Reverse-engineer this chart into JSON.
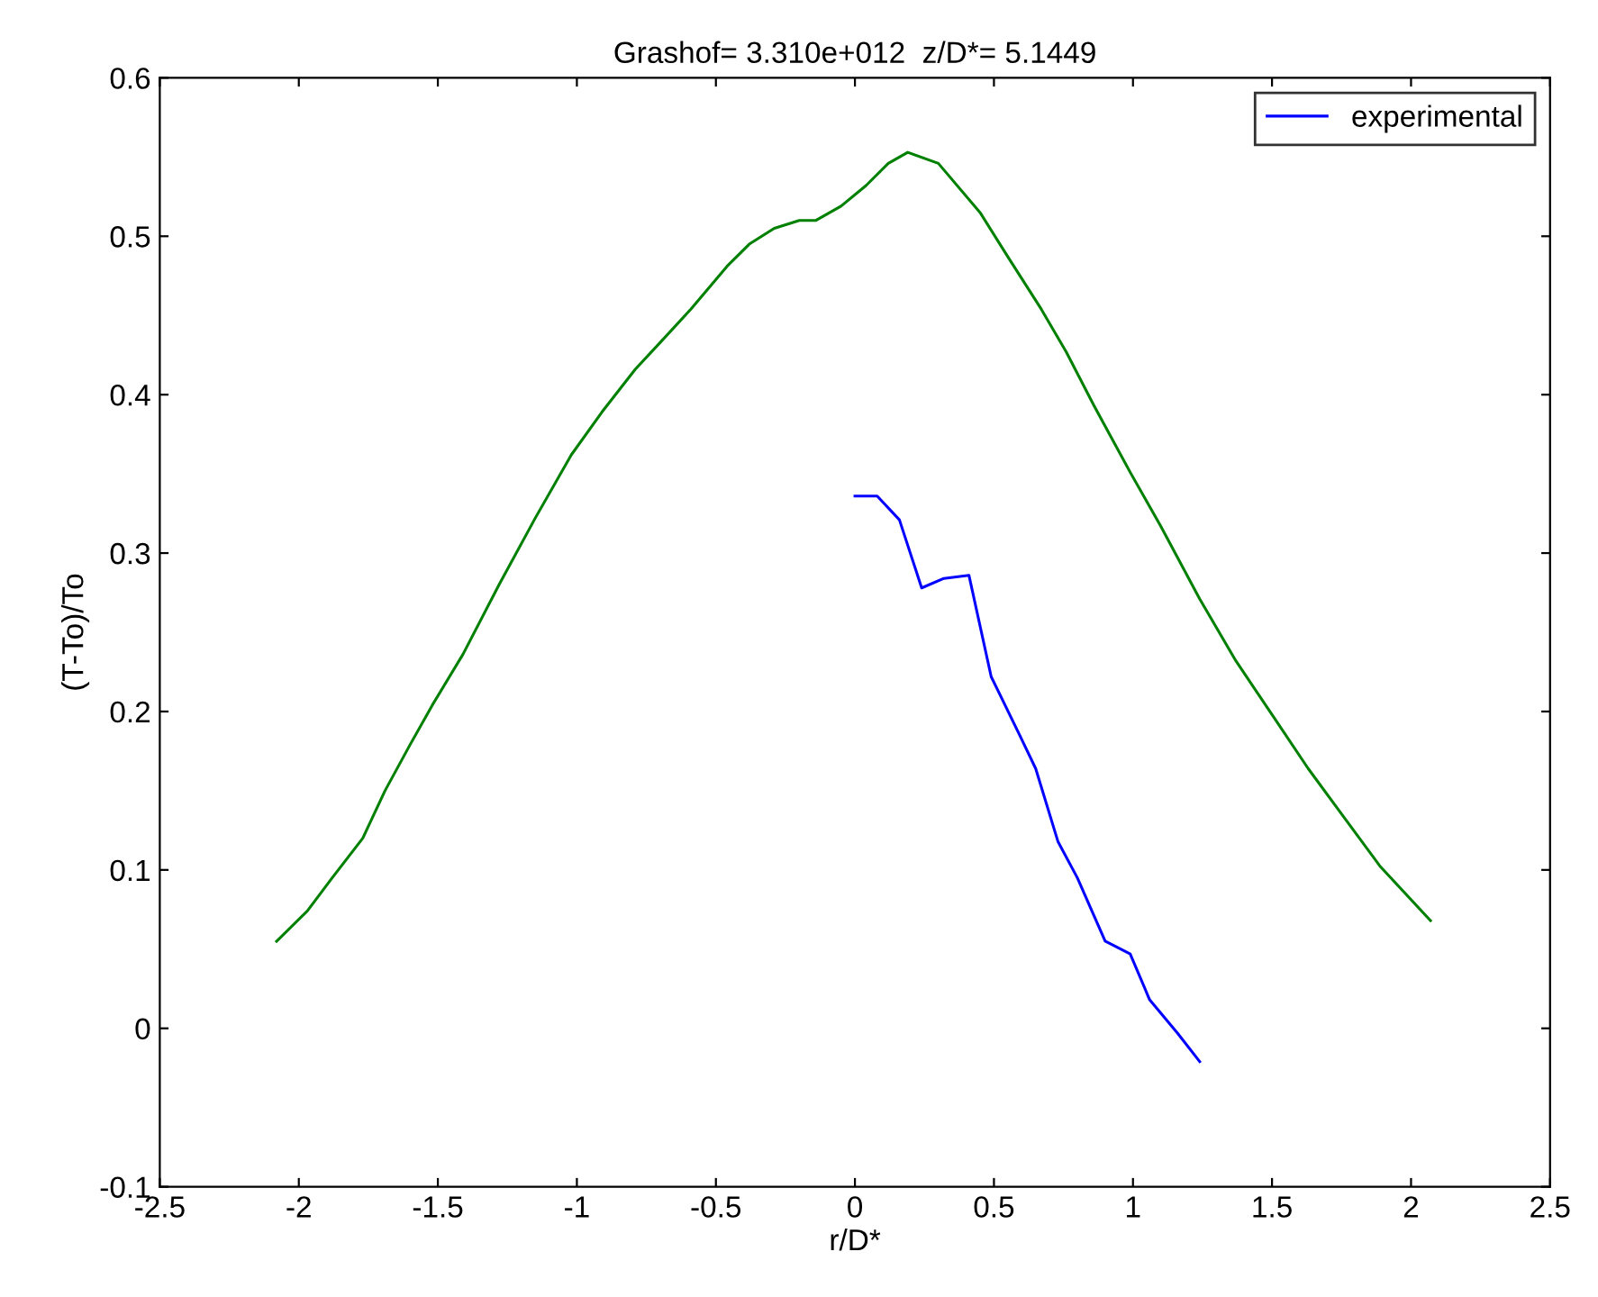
{
  "chart_data": {
    "type": "line",
    "title": "Grashof= 3.310e+012  z/D*= 5.1449",
    "xlabel": "r/D*",
    "ylabel": "(T-To)/To",
    "xlim": [
      -2.5,
      2.5
    ],
    "xticks": [
      -2.5,
      -2,
      -1.5,
      -1,
      -0.5,
      0,
      0.5,
      1,
      1.5,
      2,
      2.5
    ],
    "ylim": [
      -0.1,
      0.6
    ],
    "yticks": [
      -0.1,
      0,
      0.1,
      0.2,
      0.3,
      0.4,
      0.5,
      0.6
    ],
    "grid": false,
    "legend": "top right",
    "marker": "none",
    "line_style": "solid",
    "series": [
      {
        "name": "experimental",
        "color": "#0000ff",
        "x": [
          0,
          0.08,
          0.16,
          0.24,
          0.32,
          0.41,
          0.49,
          0.59,
          0.65,
          0.73,
          0.8,
          0.9,
          0.99,
          1.06,
          1.16,
          1.24
        ],
        "values": [
          0.336,
          0.336,
          0.321,
          0.278,
          0.284,
          0.286,
          0.222,
          0.186,
          0.164,
          0.118,
          0.095,
          0.055,
          0.047,
          0.018,
          -0.003,
          -0.021
        ]
      },
      {
        "color": "#008000",
        "x": [
          -2.08,
          -1.97,
          -1.88,
          -1.77,
          -1.69,
          -1.6,
          -1.52,
          -1.41,
          -1.28,
          -1.15,
          -1.02,
          -0.91,
          -0.79,
          -0.7,
          -0.59,
          -0.46,
          -0.38,
          -0.29,
          -0.2,
          -0.14,
          -0.05,
          0.04,
          0.12,
          0.19,
          0.3,
          0.45,
          0.55,
          0.67,
          0.76,
          0.86,
          0.99,
          1.1,
          1.24,
          1.37,
          1.5,
          1.63,
          1.76,
          1.89,
          2.07
        ],
        "values": [
          0.055,
          0.074,
          0.095,
          0.12,
          0.15,
          0.179,
          0.204,
          0.236,
          0.28,
          0.322,
          0.362,
          0.389,
          0.416,
          0.433,
          0.454,
          0.481,
          0.495,
          0.505,
          0.51,
          0.51,
          0.519,
          0.532,
          0.546,
          0.553,
          0.546,
          0.515,
          0.487,
          0.454,
          0.427,
          0.393,
          0.351,
          0.317,
          0.271,
          0.232,
          0.198,
          0.164,
          0.133,
          0.102,
          0.068
        ]
      }
    ]
  }
}
